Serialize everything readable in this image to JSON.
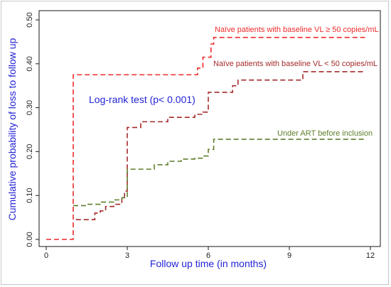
{
  "chart_data": {
    "type": "line",
    "step": true,
    "xlabel": "Follow up time (in months)",
    "ylabel": "Cumulative probability of loss to follow up",
    "xlim": [
      0,
      12
    ],
    "ylim": [
      0,
      0.5
    ],
    "xticks": [
      "0",
      "3",
      "6",
      "9",
      "12"
    ],
    "yticks": [
      "0.00",
      "0.10",
      "0.20",
      "0.30",
      "0.40",
      "0.50"
    ],
    "grid": false,
    "annotation": "Log-rank test (p< 0.001)",
    "colors": {
      "axis_titles": "#2323d6",
      "annotation": "#2323d6"
    },
    "series": [
      {
        "name": "Naïve patients with baseline VL ≥ 50 copies/mL",
        "color": "#ee2b2b",
        "x": [
          0,
          1.0,
          5.6,
          5.8,
          6.1,
          6.2,
          11.8
        ],
        "y": [
          0,
          0.375,
          0.39,
          0.415,
          0.445,
          0.46,
          0.46
        ]
      },
      {
        "name": "Naïve patients with baseline VL < 50 copies/mL",
        "color": "#a52a2a",
        "x": [
          1.1,
          1.5,
          1.8,
          2.0,
          2.2,
          2.5,
          2.8,
          2.9,
          3.0,
          3.5,
          4.0,
          4.5,
          5.0,
          5.5,
          5.8,
          6.0,
          6.9,
          7.1,
          9.5,
          11.8
        ],
        "y": [
          0.045,
          0.045,
          0.06,
          0.065,
          0.075,
          0.08,
          0.095,
          0.11,
          0.255,
          0.268,
          0.268,
          0.278,
          0.278,
          0.285,
          0.29,
          0.335,
          0.35,
          0.363,
          0.382,
          0.382
        ]
      },
      {
        "name": "Under ART before inclusion",
        "color": "#5e7d2b",
        "x": [
          1.0,
          1.5,
          2.0,
          2.5,
          2.8,
          3.0,
          3.5,
          4.0,
          4.5,
          5.0,
          5.5,
          5.8,
          6.0,
          6.2,
          11.8
        ],
        "y": [
          0.077,
          0.08,
          0.085,
          0.09,
          0.095,
          0.16,
          0.16,
          0.17,
          0.178,
          0.183,
          0.185,
          0.19,
          0.205,
          0.228,
          0.228
        ]
      }
    ]
  }
}
